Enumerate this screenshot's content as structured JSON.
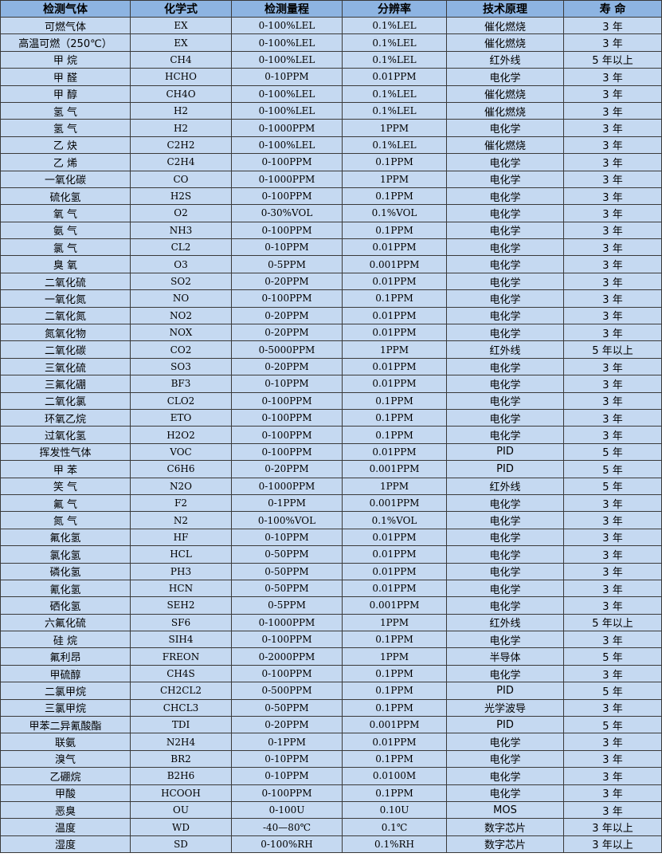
{
  "table": {
    "headers": [
      "检测气体",
      "化学式",
      "检测量程",
      "分辨率",
      "技术原理",
      "寿 命"
    ],
    "rows": [
      [
        "可燃气体",
        "EX",
        "0-100%LEL",
        "0.1%LEL",
        "催化燃烧",
        "3 年"
      ],
      [
        "高温可燃（250℃）",
        "EX",
        "0-100%LEL",
        "0.1%LEL",
        "催化燃烧",
        "3 年"
      ],
      [
        "甲 烷",
        "CH4",
        "0-100%LEL",
        "0.1%LEL",
        "红外线",
        "5 年以上"
      ],
      [
        "甲 醛",
        "HCHO",
        "0-10PPM",
        "0.01PPM",
        "电化学",
        "3 年"
      ],
      [
        "甲 醇",
        "CH4O",
        "0-100%LEL",
        "0.1%LEL",
        "催化燃烧",
        "3 年"
      ],
      [
        "氢 气",
        "H2",
        "0-100%LEL",
        "0.1%LEL",
        "催化燃烧",
        "3 年"
      ],
      [
        "氢 气",
        "H2",
        "0-1000PPM",
        "1PPM",
        "电化学",
        "3 年"
      ],
      [
        "乙 炔",
        "C2H2",
        "0-100%LEL",
        "0.1%LEL",
        "催化燃烧",
        "3 年"
      ],
      [
        "乙 烯",
        "C2H4",
        "0-100PPM",
        "0.1PPM",
        "电化学",
        "3 年"
      ],
      [
        "一氧化碳",
        "CO",
        "0-1000PPM",
        "1PPM",
        "电化学",
        "3 年"
      ],
      [
        "硫化氢",
        "H2S",
        "0-100PPM",
        "0.1PPM",
        "电化学",
        "3 年"
      ],
      [
        "氧 气",
        "O2",
        "0-30%VOL",
        "0.1%VOL",
        "电化学",
        "3 年"
      ],
      [
        "氨 气",
        "NH3",
        "0-100PPM",
        "0.1PPM",
        "电化学",
        "3 年"
      ],
      [
        "氯 气",
        "CL2",
        "0-10PPM",
        "0.01PPM",
        "电化学",
        "3 年"
      ],
      [
        "臭 氧",
        "O3",
        "0-5PPM",
        "0.001PPM",
        "电化学",
        "3 年"
      ],
      [
        "二氧化硫",
        "SO2",
        "0-20PPM",
        "0.01PPM",
        "电化学",
        "3 年"
      ],
      [
        "一氧化氮",
        "NO",
        "0-100PPM",
        "0.1PPM",
        "电化学",
        "3 年"
      ],
      [
        "二氧化氮",
        "NO2",
        "0-20PPM",
        "0.01PPM",
        "电化学",
        "3 年"
      ],
      [
        "氮氧化物",
        "NOX",
        "0-20PPM",
        "0.01PPM",
        "电化学",
        "3 年"
      ],
      [
        "二氧化碳",
        "CO2",
        "0-5000PPM",
        "1PPM",
        "红外线",
        "5 年以上"
      ],
      [
        "三氧化硫",
        "SO3",
        "0-20PPM",
        "0.01PPM",
        "电化学",
        "3 年"
      ],
      [
        "三氟化硼",
        "BF3",
        "0-10PPM",
        "0.01PPM",
        "电化学",
        "3 年"
      ],
      [
        "二氧化氯",
        "CLO2",
        "0-100PPM",
        "0.1PPM",
        "电化学",
        "3 年"
      ],
      [
        "环氧乙烷",
        "ETO",
        "0-100PPM",
        "0.1PPM",
        "电化学",
        "3 年"
      ],
      [
        "过氧化氢",
        "H2O2",
        "0-100PPM",
        "0.1PPM",
        "电化学",
        "3 年"
      ],
      [
        "挥发性气体",
        "VOC",
        "0-100PPM",
        "0.01PPM",
        "PID",
        "5 年"
      ],
      [
        "甲 苯",
        "C6H6",
        "0-20PPM",
        "0.001PPM",
        "PID",
        "5 年"
      ],
      [
        "笑 气",
        "N2O",
        "0-1000PPM",
        "1PPM",
        "红外线",
        "5 年"
      ],
      [
        "氟 气",
        "F2",
        "0-1PPM",
        "0.001PPM",
        "电化学",
        "3 年"
      ],
      [
        "氮 气",
        "N2",
        "0-100%VOL",
        "0.1%VOL",
        "电化学",
        "3 年"
      ],
      [
        "氟化氢",
        "HF",
        "0-10PPM",
        "0.01PPM",
        "电化学",
        "3 年"
      ],
      [
        "氯化氢",
        "HCL",
        "0-50PPM",
        "0.01PPM",
        "电化学",
        "3 年"
      ],
      [
        "磷化氢",
        "PH3",
        "0-50PPM",
        "0.01PPM",
        "电化学",
        "3 年"
      ],
      [
        "氰化氢",
        "HCN",
        "0-50PPM",
        "0.01PPM",
        "电化学",
        "3 年"
      ],
      [
        "硒化氢",
        "SEH2",
        "0-5PPM",
        "0.001PPM",
        "电化学",
        "3 年"
      ],
      [
        "六氟化硫",
        "SF6",
        "0-1000PPM",
        "1PPM",
        "红外线",
        "5 年以上"
      ],
      [
        "硅 烷",
        "SIH4",
        "0-100PPM",
        "0.1PPM",
        "电化学",
        "3 年"
      ],
      [
        "氟利昂",
        "FREON",
        "0-2000PPM",
        "1PPM",
        "半导体",
        "5 年"
      ],
      [
        "甲硫醇",
        "CH4S",
        "0-100PPM",
        "0.1PPM",
        "电化学",
        "3 年"
      ],
      [
        "二氯甲烷",
        "CH2CL2",
        "0-500PPM",
        "0.1PPM",
        "PID",
        "5 年"
      ],
      [
        "三氯甲烷",
        "CHCL3",
        "0-50PPM",
        "0.1PPM",
        "光学波导",
        "3 年"
      ],
      [
        "甲苯二异氰酸酯",
        "TDI",
        "0-20PPM",
        "0.001PPM",
        "PID",
        "5 年"
      ],
      [
        "联氨",
        "N2H4",
        "0-1PPM",
        "0.01PPM",
        "电化学",
        "3 年"
      ],
      [
        "溴气",
        "BR2",
        "0-10PPM",
        "0.1PPM",
        "电化学",
        "3 年"
      ],
      [
        "乙硼烷",
        "B2H6",
        "0-10PPM",
        "0.0100M",
        "电化学",
        "3 年"
      ],
      [
        "甲酸",
        "HCOOH",
        "0-100PPM",
        "0.1PPM",
        "电化学",
        "3 年"
      ],
      [
        "恶臭",
        "OU",
        "0-100U",
        "0.10U",
        "MOS",
        "3 年"
      ],
      [
        "温度",
        "WD",
        "-40—80℃",
        "0.1℃",
        "数字芯片",
        "3 年以上"
      ],
      [
        "湿度",
        "SD",
        "0-100%RH",
        "0.1%RH",
        "数字芯片",
        "3 年以上"
      ]
    ]
  },
  "colors": {
    "header_bg": "#8db4e2",
    "row_bg": "#c5d9f1",
    "border": "#3a3a3a"
  }
}
